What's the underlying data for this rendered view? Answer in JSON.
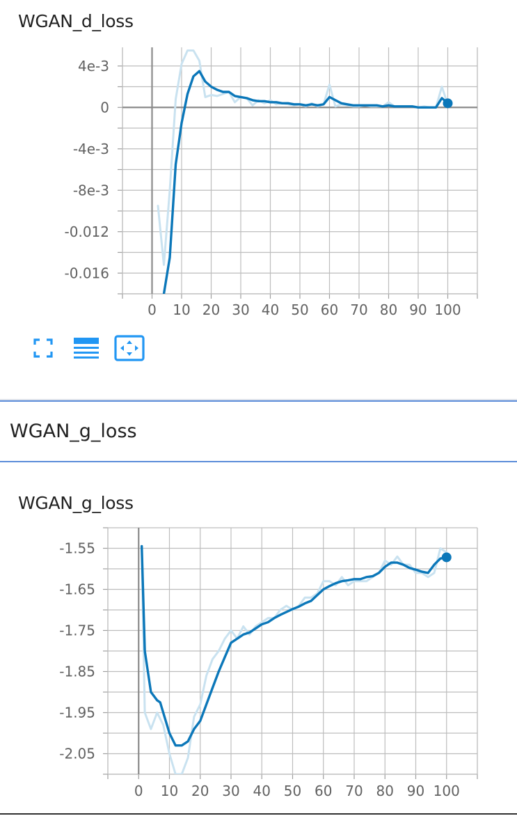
{
  "charts": [
    {
      "card_title": "WGAN_d_loss",
      "chart_data": {
        "type": "line",
        "title": "WGAN_d_loss",
        "xlabel": "",
        "ylabel": "",
        "xlim": [
          -10,
          110
        ],
        "ylim": [
          -0.018,
          0.0058
        ],
        "x_ticks": [
          0,
          10,
          20,
          30,
          40,
          50,
          60,
          70,
          80,
          90,
          100
        ],
        "x_tick_labels": [
          "0",
          "10",
          "20",
          "30",
          "40",
          "50",
          "60",
          "70",
          "80",
          "90",
          "100"
        ],
        "y_ticks": [
          0.004,
          0,
          -0.004,
          -0.008,
          -0.012,
          -0.016
        ],
        "y_tick_labels": [
          "4e-3",
          "0",
          "-4e-3",
          "-8e-3",
          "-0.012",
          "-0.016"
        ],
        "grid": true,
        "series": [
          {
            "role": "raw",
            "color": "#c9e2f0",
            "x": [
              2,
              4,
              6,
              8,
              10,
              12,
              14,
              16,
              18,
              20,
              22,
              24,
              26,
              28,
              30,
              32,
              34,
              36,
              38,
              40,
              42,
              44,
              46,
              48,
              50,
              52,
              54,
              56,
              58,
              60,
              62,
              64,
              66,
              68,
              70,
              72,
              74,
              76,
              78,
              80,
              82,
              84,
              86,
              88,
              90,
              92,
              94,
              96,
              98,
              100
            ],
            "y": [
              -0.0095,
              -0.0152,
              -0.008,
              0.0008,
              0.0042,
              0.0055,
              0.0055,
              0.0045,
              0.001,
              0.0012,
              0.0011,
              0.0013,
              0.0015,
              0.0005,
              0.001,
              0.0009,
              0.0002,
              0.0007,
              0.0004,
              0.0007,
              0.0003,
              0.0004,
              0.0003,
              0.0002,
              0.0003,
              0.0001,
              0.0004,
              0.0001,
              0.0003,
              0.0022,
              0.0001,
              0.0003,
              0.0002,
              0.0001,
              0.0001,
              0.0002,
              0.0001,
              0.0001,
              0.0001,
              0.0005,
              0.0001,
              0.0001,
              0.0001,
              0.0001,
              0.0,
              0.0001,
              0.0,
              0.0,
              0.002,
              0.0003
            ]
          },
          {
            "role": "smoothed",
            "color": "#0b77b9",
            "x": [
              4,
              6,
              8,
              10,
              12,
              14,
              16,
              18,
              20,
              22,
              24,
              26,
              28,
              30,
              32,
              34,
              36,
              38,
              40,
              42,
              44,
              46,
              48,
              50,
              52,
              54,
              56,
              58,
              60,
              62,
              64,
              66,
              68,
              70,
              72,
              74,
              76,
              78,
              80,
              82,
              84,
              86,
              88,
              90,
              92,
              94,
              96,
              98,
              100
            ],
            "y": [
              -0.018,
              -0.0145,
              -0.0055,
              -0.0015,
              0.0013,
              0.003,
              0.0035,
              0.0025,
              0.002,
              0.0017,
              0.0015,
              0.0015,
              0.0011,
              0.001,
              0.0009,
              0.0007,
              0.0006,
              0.0006,
              0.0005,
              0.0005,
              0.0004,
              0.0004,
              0.0003,
              0.0003,
              0.0002,
              0.0003,
              0.0002,
              0.0003,
              0.001,
              0.0007,
              0.0004,
              0.0003,
              0.0002,
              0.0002,
              0.0002,
              0.0002,
              0.0002,
              0.0001,
              0.0002,
              0.0001,
              0.0001,
              0.0001,
              0.0001,
              0.0,
              0.0,
              0.0,
              0.0,
              0.0009,
              0.0004
            ]
          }
        ]
      }
    },
    {
      "card_title": "WGAN_g_loss",
      "chart_data": {
        "type": "line",
        "title": "WGAN_g_loss",
        "xlabel": "",
        "ylabel": "",
        "xlim": [
          -10,
          110
        ],
        "ylim": [
          -2.1,
          -1.5
        ],
        "x_ticks": [
          0,
          10,
          20,
          30,
          40,
          50,
          60,
          70,
          80,
          90,
          100
        ],
        "x_tick_labels": [
          "0",
          "10",
          "20",
          "30",
          "40",
          "50",
          "60",
          "70",
          "80",
          "90",
          "100"
        ],
        "y_ticks": [
          -1.55,
          -1.65,
          -1.75,
          -1.85,
          -1.95,
          -2.05
        ],
        "y_tick_labels": [
          "-1.55",
          "-1.65",
          "-1.75",
          "-1.85",
          "-1.95",
          "-2.05"
        ],
        "grid": true,
        "series": [
          {
            "role": "raw",
            "color": "#c9e2f0",
            "x": [
              1,
              2,
              4,
              6,
              8,
              10,
              12,
              14,
              16,
              18,
              20,
              22,
              24,
              26,
              28,
              30,
              32,
              34,
              36,
              38,
              40,
              42,
              44,
              46,
              48,
              50,
              52,
              54,
              56,
              58,
              60,
              62,
              64,
              66,
              68,
              70,
              72,
              74,
              76,
              78,
              80,
              82,
              84,
              86,
              88,
              90,
              92,
              94,
              96,
              98,
              100
            ],
            "y": [
              -1.55,
              -1.95,
              -1.99,
              -1.95,
              -1.98,
              -2.05,
              -2.1,
              -2.1,
              -2.06,
              -1.96,
              -1.93,
              -1.86,
              -1.82,
              -1.8,
              -1.77,
              -1.75,
              -1.77,
              -1.74,
              -1.76,
              -1.74,
              -1.73,
              -1.72,
              -1.72,
              -1.7,
              -1.69,
              -1.7,
              -1.69,
              -1.67,
              -1.67,
              -1.66,
              -1.63,
              -1.63,
              -1.64,
              -1.62,
              -1.64,
              -1.63,
              -1.63,
              -1.63,
              -1.62,
              -1.61,
              -1.58,
              -1.59,
              -1.57,
              -1.59,
              -1.59,
              -1.61,
              -1.61,
              -1.62,
              -1.61,
              -1.55,
              -1.56
            ]
          },
          {
            "role": "smoothed",
            "color": "#0b77b9",
            "x": [
              1,
              2,
              4,
              6,
              7,
              8,
              10,
              12,
              14,
              16,
              18,
              20,
              22,
              24,
              26,
              28,
              30,
              32,
              34,
              36,
              38,
              40,
              42,
              44,
              46,
              48,
              50,
              52,
              54,
              56,
              58,
              60,
              62,
              64,
              66,
              68,
              70,
              72,
              74,
              76,
              78,
              80,
              82,
              84,
              86,
              88,
              90,
              92,
              94,
              96,
              98,
              100
            ],
            "y": [
              -1.545,
              -1.8,
              -1.9,
              -1.92,
              -1.925,
              -1.95,
              -2.0,
              -2.03,
              -2.03,
              -2.02,
              -1.99,
              -1.97,
              -1.93,
              -1.89,
              -1.85,
              -1.815,
              -1.78,
              -1.77,
              -1.76,
              -1.755,
              -1.745,
              -1.735,
              -1.73,
              -1.72,
              -1.712,
              -1.705,
              -1.698,
              -1.692,
              -1.684,
              -1.678,
              -1.664,
              -1.65,
              -1.642,
              -1.635,
              -1.63,
              -1.628,
              -1.625,
              -1.625,
              -1.62,
              -1.618,
              -1.61,
              -1.595,
              -1.585,
              -1.585,
              -1.59,
              -1.598,
              -1.602,
              -1.607,
              -1.61,
              -1.59,
              -1.575,
              -1.572
            ]
          }
        ]
      }
    }
  ],
  "toolbar": {
    "buttons": [
      {
        "name": "fullscreen-icon",
        "color": "#2196f3"
      },
      {
        "name": "data-table-icon",
        "color": "#2196f3"
      },
      {
        "name": "fit-domain-icon",
        "color": "#2196f3"
      }
    ]
  },
  "section": {
    "label": "WGAN_g_loss"
  },
  "colors": {
    "grid": "#bdbdbd",
    "axis": "#9e9e9e",
    "tick_text": "#616161",
    "accent": "#2196f3",
    "divider": "#5b8cd9"
  }
}
